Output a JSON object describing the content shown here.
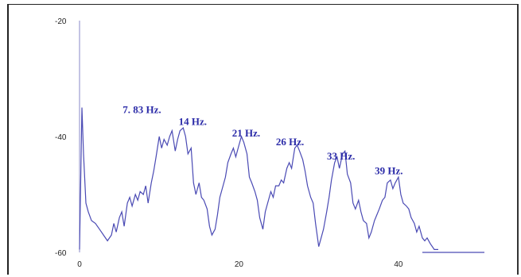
{
  "chart_data": {
    "type": "line",
    "title": "",
    "xlabel": "",
    "ylabel": "",
    "xlim": [
      0,
      45
    ],
    "ylim": [
      -60,
      -20
    ],
    "xticks": [
      "0",
      "20",
      "40"
    ],
    "yticks": [
      "-20",
      "-40",
      "-60"
    ],
    "line_color": "#4a4ab4",
    "annotation_color": "#2b2ba8",
    "annotations": [
      {
        "text": "7. 83 Hz.",
        "x": 7.83,
        "y": -39
      },
      {
        "text": "14 Hz.",
        "x": 14.2,
        "y": -41
      },
      {
        "text": "21 Hz.",
        "x": 20.9,
        "y": -43
      },
      {
        "text": "26 Hz.",
        "x": 26.4,
        "y": -44.5
      },
      {
        "text": "33 Hz.",
        "x": 32.8,
        "y": -47
      },
      {
        "text": "39 Hz.",
        "x": 38.8,
        "y": -49.5
      }
    ],
    "series": [
      {
        "x": [
          0,
          0.3,
          0.5,
          0.8,
          1.1,
          1.5,
          2.0,
          2.5,
          3.0,
          3.5,
          4.0,
          4.3,
          4.6,
          5.0,
          5.3,
          5.6,
          6.0,
          6.3,
          6.6,
          7.0,
          7.3,
          7.6,
          8.0,
          8.3,
          8.6,
          9.0,
          9.3,
          9.6,
          10.0,
          10.3,
          10.6,
          11.0,
          11.3,
          11.6,
          12.0,
          12.3,
          12.6,
          13.0,
          13.3,
          13.6,
          14.0,
          14.3,
          14.6,
          15.0,
          15.3,
          15.6,
          16.0,
          16.3,
          16.6,
          17.0,
          17.3,
          17.6,
          18.0,
          18.3,
          18.6,
          19.0,
          19.3,
          19.6,
          20.0,
          20.3,
          20.6,
          21.0,
          21.3,
          21.6,
          22.0,
          22.3,
          22.6,
          23.0,
          23.3,
          23.6,
          24.0,
          24.3,
          24.6,
          25.0,
          25.3,
          25.6,
          26.0,
          26.3,
          26.6,
          27.0,
          27.3,
          27.6,
          28.0,
          28.3,
          28.6,
          29.0,
          29.3,
          29.6,
          30.0,
          30.3,
          30.6,
          31.0,
          31.3,
          31.6,
          32.0,
          32.3,
          32.6,
          33.0,
          33.3,
          33.6,
          34.0,
          34.3,
          34.6,
          35.0,
          35.3,
          35.6,
          36.0,
          36.3,
          36.6,
          37.0,
          37.3,
          37.6,
          38.0,
          38.3,
          38.6,
          39.0,
          39.3,
          39.6,
          40.0,
          40.3,
          40.6,
          41.0,
          41.3,
          41.6,
          42.0,
          42.3,
          42.6,
          43.0,
          43.3,
          43.6,
          44.0,
          44.5,
          45.0
        ],
        "y": [
          -59.5,
          -35.0,
          -43.0,
          -51.5,
          -53.0,
          -54.5,
          -55.0,
          -56.0,
          -57.0,
          -58.0,
          -57.0,
          -55.0,
          -56.5,
          -54.0,
          -53.0,
          -55.5,
          -51.5,
          -50.5,
          -52.0,
          -50.0,
          -51.0,
          -49.5,
          -50.0,
          -48.5,
          -51.5,
          -48.0,
          -46.0,
          -43.5,
          -40.0,
          -42.0,
          -40.5,
          -41.5,
          -40.0,
          -39.0,
          -42.5,
          -40.5,
          -39.0,
          -38.5,
          -40.0,
          -43.0,
          -42.0,
          -48.0,
          -50.0,
          -48.0,
          -50.5,
          -51.0,
          -52.5,
          -55.5,
          -57.0,
          -56.0,
          -53.5,
          -50.5,
          -48.5,
          -47.0,
          -44.5,
          -43.0,
          -42.0,
          -43.5,
          -41.5,
          -40.0,
          -41.0,
          -43.0,
          -47.0,
          -48.0,
          -49.5,
          -51.0,
          -54.0,
          -56.0,
          -53.0,
          -51.5,
          -49.5,
          -50.5,
          -48.5,
          -48.5,
          -47.5,
          -48.0,
          -45.5,
          -44.5,
          -45.5,
          -42.0,
          -41.5,
          -42.5,
          -44.0,
          -46.0,
          -48.5,
          -50.5,
          -51.5,
          -55.0,
          -59.0,
          -57.5,
          -56.0,
          -53.0,
          -50.5,
          -47.5,
          -44.5,
          -43.5,
          -45.5,
          -43.0,
          -42.5,
          -46.5,
          -48.0,
          -51.5,
          -52.5,
          -51.0,
          -53.0,
          -54.5,
          -55.0,
          -57.5,
          -56.5,
          -54.5,
          -53.5,
          -52.5,
          -51.0,
          -50.5,
          -48.0,
          -47.5,
          -49.0,
          -48.0,
          -47.0,
          -50.0,
          -51.5,
          -52.0,
          -52.5,
          -54.0,
          -55.0,
          -56.5,
          -55.5,
          -57.5,
          -58.0,
          -57.5,
          -58.5,
          -59.5,
          -59.5
        ]
      }
    ]
  }
}
